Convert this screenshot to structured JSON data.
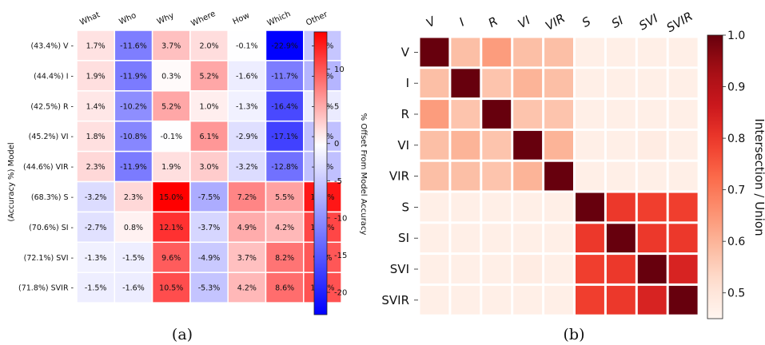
{
  "chart_data": [
    {
      "type": "heatmap",
      "caption": "(a)",
      "columns": [
        "What",
        "Who",
        "Why",
        "Where",
        "How",
        "Which",
        "Other"
      ],
      "rows": [
        "(43.4%) V",
        "(44.4%) I",
        "(42.5%) R",
        "(45.2%) VI",
        "(44.6%) VIR",
        "(68.3%) S",
        "(70.6%) SI",
        "(72.1%) SVI",
        "(71.8%) SVIR"
      ],
      "ylabel": "(Accuracy %) Model",
      "colorbar_label": "% Offset From Model Accuracy",
      "colorbar_range": [
        -23,
        15
      ],
      "colorbar_ticks": [
        10,
        5,
        0,
        -5,
        -10,
        -15,
        -20
      ],
      "colormap": "bwr",
      "values": [
        [
          1.7,
          -11.6,
          3.7,
          2.0,
          -0.1,
          -22.9,
          -5.1
        ],
        [
          1.9,
          -11.9,
          0.3,
          5.2,
          -1.6,
          -11.7,
          -6.7
        ],
        [
          1.4,
          -10.2,
          5.2,
          1.0,
          -1.3,
          -16.4,
          -1.8
        ],
        [
          1.8,
          -10.8,
          -0.1,
          6.1,
          -2.9,
          -17.1,
          -5.7
        ],
        [
          2.3,
          -11.9,
          1.9,
          3.0,
          -3.2,
          -12.8,
          -5.7
        ],
        [
          -3.2,
          2.3,
          15.0,
          -7.5,
          7.2,
          5.5,
          13.7
        ],
        [
          -2.7,
          0.8,
          12.1,
          -3.7,
          4.9,
          4.2,
          10.9
        ],
        [
          -1.3,
          -1.5,
          9.6,
          -4.9,
          3.7,
          8.2,
          9.9
        ],
        [
          -1.5,
          -1.6,
          10.5,
          -5.3,
          4.2,
          8.6,
          10.2
        ]
      ],
      "value_labels": [
        [
          "1.7%",
          "-11.6%",
          "3.7%",
          "2.0%",
          "-0.1%",
          "-22.9%",
          "-5.1%"
        ],
        [
          "1.9%",
          "-11.9%",
          "0.3%",
          "5.2%",
          "-1.6%",
          "-11.7%",
          "-6.7%"
        ],
        [
          "1.4%",
          "-10.2%",
          "5.2%",
          "1.0%",
          "-1.3%",
          "-16.4%",
          "-1.8%"
        ],
        [
          "1.8%",
          "-10.8%",
          "-0.1%",
          "6.1%",
          "-2.9%",
          "-17.1%",
          "-5.7%"
        ],
        [
          "2.3%",
          "-11.9%",
          "1.9%",
          "3.0%",
          "-3.2%",
          "-12.8%",
          "-5.7%"
        ],
        [
          "-3.2%",
          "2.3%",
          "15.0%",
          "-7.5%",
          "7.2%",
          "5.5%",
          "13.7%"
        ],
        [
          "-2.7%",
          "0.8%",
          "12.1%",
          "-3.7%",
          "4.9%",
          "4.2%",
          "10.9%"
        ],
        [
          "-1.3%",
          "-1.5%",
          "9.6%",
          "-4.9%",
          "3.7%",
          "8.2%",
          "9.9%"
        ],
        [
          "-1.5%",
          "-1.6%",
          "10.5%",
          "-5.3%",
          "4.2%",
          "8.6%",
          "10.2%"
        ]
      ]
    },
    {
      "type": "heatmap",
      "caption": "(b)",
      "columns": [
        "V",
        "I",
        "R",
        "VI",
        "VIR",
        "S",
        "SI",
        "SVI",
        "SVIR"
      ],
      "rows": [
        "V",
        "I",
        "R",
        "VI",
        "VIR",
        "S",
        "SI",
        "SVI",
        "SVIR"
      ],
      "colorbar_label": "Intersection / Union",
      "colorbar_range": [
        0.45,
        1.0
      ],
      "colorbar_ticks": [
        "1.0",
        "0.9",
        "0.8",
        "0.7",
        "0.6",
        "0.5"
      ],
      "colormap": "Reds",
      "values": [
        [
          1.0,
          0.58,
          0.64,
          0.58,
          0.58,
          0.47,
          0.47,
          0.47,
          0.47
        ],
        [
          0.58,
          1.0,
          0.57,
          0.6,
          0.58,
          0.47,
          0.47,
          0.47,
          0.47
        ],
        [
          0.64,
          0.57,
          1.0,
          0.57,
          0.57,
          0.47,
          0.47,
          0.47,
          0.47
        ],
        [
          0.58,
          0.6,
          0.57,
          1.0,
          0.6,
          0.47,
          0.47,
          0.48,
          0.47
        ],
        [
          0.58,
          0.58,
          0.57,
          0.6,
          1.0,
          0.47,
          0.47,
          0.47,
          0.47
        ],
        [
          0.47,
          0.47,
          0.47,
          0.47,
          0.47,
          1.0,
          0.8,
          0.79,
          0.79
        ],
        [
          0.47,
          0.47,
          0.47,
          0.47,
          0.47,
          0.8,
          1.0,
          0.8,
          0.8
        ],
        [
          0.47,
          0.47,
          0.47,
          0.48,
          0.47,
          0.79,
          0.8,
          1.0,
          0.84
        ],
        [
          0.47,
          0.47,
          0.47,
          0.47,
          0.47,
          0.79,
          0.8,
          0.84,
          1.0
        ]
      ]
    }
  ]
}
